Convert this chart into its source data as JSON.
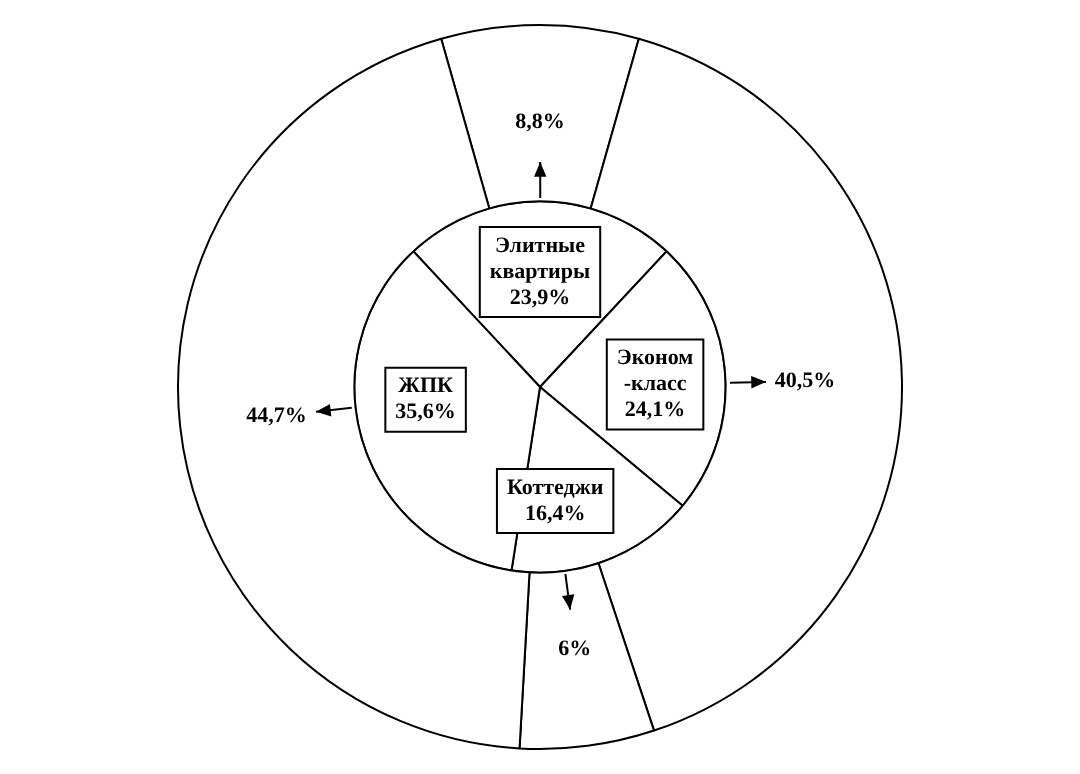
{
  "chart_data": {
    "type": "pie",
    "categories": [
      "Элитные квартиры",
      "Эконом-класс",
      "Коттеджи",
      "ЖПК"
    ],
    "series": [
      {
        "values": [
          8.8,
          40.5,
          6,
          44.7
        ],
        "value_labels": [
          "8,8%",
          "40,5%",
          "6%",
          "44,7%"
        ],
        "colors": [
          "#ffffff",
          "#ffffff",
          "#ffffff",
          "#ffffff"
        ]
      },
      {
        "values": [
          23.9,
          24.1,
          16.4,
          35.6
        ],
        "value_labels": [
          "23,9%",
          "24,1%",
          "16,4%",
          "35,6%"
        ],
        "colors": [
          "#ffffff",
          "#ffffff",
          "#ffffff",
          "#ffffff"
        ]
      }
    ],
    "legend": false
  }
}
